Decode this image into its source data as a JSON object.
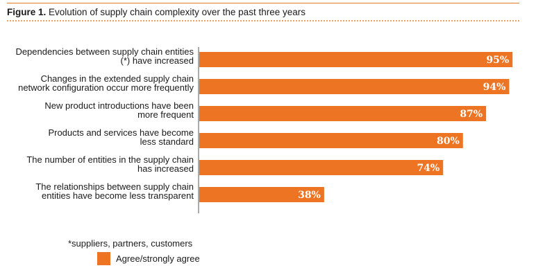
{
  "figure": {
    "number": "Figure 1.",
    "title": "Evolution of supply chain complexity over the past three years",
    "footnote": "*suppliers, partners, customers"
  },
  "colors": {
    "bar": "#ec7423",
    "rule": "#e07a26",
    "axis": "#555555"
  },
  "chart_data": {
    "type": "bar",
    "orientation": "horizontal",
    "categories": [
      [
        "Dependencies between supply chain entities",
        "(*) have increased"
      ],
      [
        "Changes in the extended supply chain",
        "network configuration occur more frequently"
      ],
      [
        "New product introductions have been",
        "more frequent"
      ],
      [
        "Products and services have become",
        "less standard"
      ],
      [
        "The number of entities in the supply chain",
        "has increased"
      ],
      [
        "The relationships between supply chain",
        "entities have become less transparent"
      ]
    ],
    "series": [
      {
        "name": "Agree/strongly agree",
        "values": [
          95,
          94,
          87,
          80,
          74,
          38
        ]
      }
    ],
    "value_labels": [
      "95%",
      "94%",
      "87%",
      "80%",
      "74%",
      "38%"
    ],
    "xlim": [
      0,
      100
    ],
    "grid": false,
    "legend_position": "bottom-left"
  }
}
